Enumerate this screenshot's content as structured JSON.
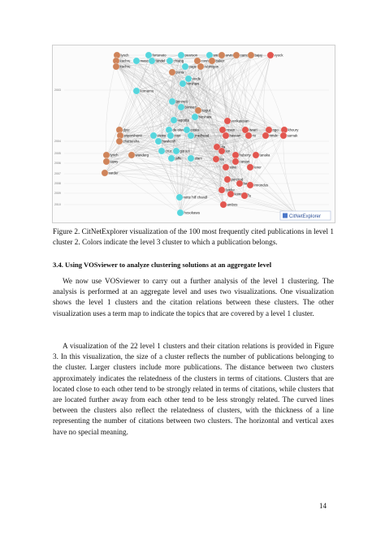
{
  "figure": {
    "years": [
      "2003",
      "2004",
      "2005",
      "2006",
      "2007",
      "2008",
      "2009",
      "2010"
    ],
    "logo_text": "CitNetExplorer",
    "colors": {
      "cyan": "#56d6dd",
      "red": "#e2564f",
      "orange": "#cf845a",
      "edge": "#9a9a9a"
    },
    "nodes": [
      {
        "label": "lynch",
        "c": "orange"
      },
      {
        "label": "fortunato",
        "c": "cyan"
      },
      {
        "label": "pearson",
        "c": "cyan"
      },
      {
        "label": "smith",
        "c": "cyan"
      },
      {
        "label": "arvin",
        "c": "orange"
      },
      {
        "label": "carroll",
        "c": "orange"
      },
      {
        "label": "bajaj",
        "c": "orange"
      },
      {
        "label": "vyock",
        "c": "red"
      },
      {
        "label": "kachru",
        "c": "orange"
      },
      {
        "label": "mason",
        "c": "cyan"
      },
      {
        "label": "tandel",
        "c": "cyan"
      },
      {
        "label": "chiang",
        "c": "cyan"
      },
      {
        "label": "connell",
        "c": "orange"
      },
      {
        "label": "baker",
        "c": "orange"
      },
      {
        "label": "kachru",
        "c": "orange"
      },
      {
        "label": "page",
        "c": "cyan"
      },
      {
        "label": "rubinigan",
        "c": "orange"
      },
      {
        "label": "ponte",
        "c": "orange"
      },
      {
        "label": "verde",
        "c": "cyan"
      },
      {
        "label": "hinshaw",
        "c": "cyan"
      },
      {
        "label": "komarnu",
        "c": "cyan"
      },
      {
        "label": "bennett",
        "c": "cyan"
      },
      {
        "label": "bennett",
        "c": "cyan"
      },
      {
        "label": "kogut",
        "c": "orange"
      },
      {
        "label": "hinshaw",
        "c": "cyan"
      },
      {
        "label": "lagrotta",
        "c": "cyan"
      },
      {
        "label": "venkatesan",
        "c": "red"
      },
      {
        "label": "dyer",
        "c": "orange"
      },
      {
        "label": "de oliveira",
        "c": "cyan"
      },
      {
        "label": "costa",
        "c": "cyan"
      },
      {
        "label": "rosen",
        "c": "red"
      },
      {
        "label": "tiwari",
        "c": "red"
      },
      {
        "label": "ngo",
        "c": "red"
      },
      {
        "label": "khoury",
        "c": "red"
      },
      {
        "label": "sriparshunti",
        "c": "orange"
      },
      {
        "label": "vieira",
        "c": "cyan"
      },
      {
        "label": "copi",
        "c": "cyan"
      },
      {
        "label": "jiradhead",
        "c": "cyan"
      },
      {
        "label": "hassan",
        "c": "red"
      },
      {
        "label": "rio",
        "c": "red"
      },
      {
        "label": "nmdc",
        "c": "red"
      },
      {
        "label": "sarnak",
        "c": "red"
      },
      {
        "label": "chattersha",
        "c": "orange"
      },
      {
        "label": "hawkesh",
        "c": "cyan"
      },
      {
        "label": "ola",
        "c": "red"
      },
      {
        "label": "lynch",
        "c": "orange"
      },
      {
        "label": "wanderg",
        "c": "orange"
      },
      {
        "label": "cruz",
        "c": "cyan"
      },
      {
        "label": "goroot",
        "c": "cyan"
      },
      {
        "label": "lee",
        "c": "red"
      },
      {
        "label": "huberty",
        "c": "red"
      },
      {
        "label": "tanaka",
        "c": "red"
      },
      {
        "label": "sawy",
        "c": "orange"
      },
      {
        "label": "jaffe",
        "c": "cyan"
      },
      {
        "label": "alam",
        "c": "cyan"
      },
      {
        "label": "lee",
        "c": "red"
      },
      {
        "label": "carson",
        "c": "red"
      },
      {
        "label": "sarder",
        "c": "orange"
      },
      {
        "label": "stine",
        "c": "red"
      },
      {
        "label": "lever",
        "c": "red"
      },
      {
        "label": "percival",
        "c": "red"
      },
      {
        "label": "barton",
        "c": "red"
      },
      {
        "label": "imrondus",
        "c": "red"
      },
      {
        "label": "fowler",
        "c": "red"
      },
      {
        "label": "kowando",
        "c": "red"
      },
      {
        "label": "fu",
        "c": "red"
      },
      {
        "label": "notte hill chandl",
        "c": "cyan"
      },
      {
        "label": "ambos",
        "c": "red"
      },
      {
        "label": "horawa",
        "c": "red"
      },
      {
        "label": "hosokawa",
        "c": "cyan"
      }
    ]
  },
  "caption": "Figure 2. CitNetExplorer visualization of the 100 most frequently cited publications in level 1 cluster 2. Colors indicate the level 3 cluster to which a publication belongs.",
  "section_heading": "3.4. Using VOSviewer to analyze clustering solutions at an aggregate level",
  "paragraphs": [
    "We now use VOSviewer to carry out a further analysis of the level 1 clustering. The analysis is performed at an aggregate level and uses two visualizations. One visualization shows the level 1 clusters and the citation relations between these clusters. The other visualization uses a term map to indicate the topics that are covered by a level 1 cluster.",
    "A visualization of the 22 level 1 clusters and their citation relations is provided in Figure 3. In this visualization, the size of a cluster reflects the number of publications belonging to the cluster. Larger clusters include more publications. The distance between two clusters approximately indicates the relatedness of the clusters in terms of citations. Clusters that are located close to each other tend to be strongly related in terms of citations, while clusters that are located further away from each other tend to be less strongly related. The curved lines between the clusters also reflect the relatedness of clusters, with the thickness of a line representing the number of citations between two clusters. The horizontal and vertical axes have no special meaning."
  ],
  "page_number": "14"
}
